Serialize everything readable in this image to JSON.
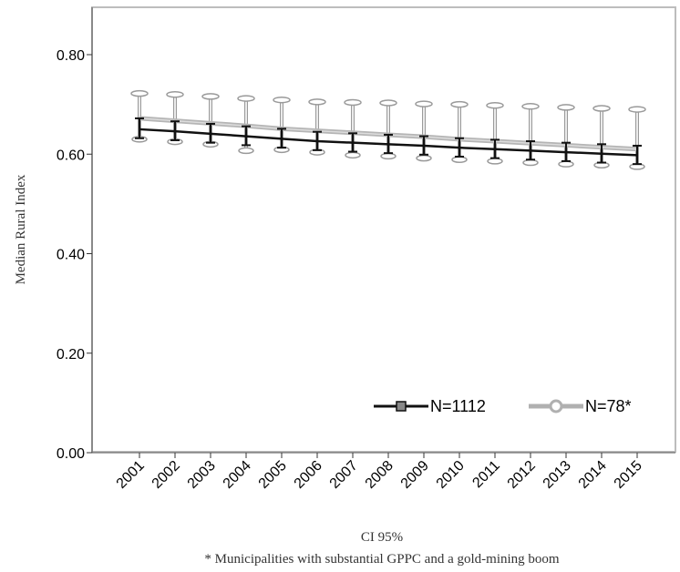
{
  "chart_data": {
    "type": "line",
    "title": "",
    "xlabel": "CI 95%",
    "ylabel": "Median Rural Index",
    "footnote": "* Municipalities with substantial GPPC and a gold-mining boom",
    "categories": [
      "2001",
      "2002",
      "2003",
      "2004",
      "2005",
      "2006",
      "2007",
      "2008",
      "2009",
      "2010",
      "2011",
      "2012",
      "2013",
      "2014",
      "2015"
    ],
    "ylim": [
      0,
      0.85
    ],
    "yticks": [
      "0.00",
      "0.20",
      "0.40",
      "0.60",
      "0.80"
    ],
    "ytick_values": [
      0,
      0.2,
      0.4,
      0.6,
      0.8
    ],
    "grid": false,
    "legend_position": "bottom-right",
    "series": [
      {
        "name": "N=1112",
        "color": "#111111",
        "marker": "square",
        "values": [
          0.65,
          0.646,
          0.641,
          0.636,
          0.631,
          0.626,
          0.623,
          0.62,
          0.617,
          0.613,
          0.61,
          0.607,
          0.604,
          0.601,
          0.598
        ],
        "ci_low": [
          0.632,
          0.628,
          0.623,
          0.618,
          0.613,
          0.608,
          0.605,
          0.602,
          0.599,
          0.595,
          0.592,
          0.589,
          0.586,
          0.583,
          0.58
        ],
        "ci_high": [
          0.672,
          0.666,
          0.661,
          0.656,
          0.651,
          0.645,
          0.642,
          0.639,
          0.636,
          0.632,
          0.629,
          0.626,
          0.623,
          0.62,
          0.617
        ]
      },
      {
        "name": "N=78*",
        "color": "#aaaaaa",
        "marker": "circle",
        "values": [
          0.672,
          0.667,
          0.662,
          0.657,
          0.651,
          0.647,
          0.643,
          0.639,
          0.635,
          0.63,
          0.626,
          0.622,
          0.618,
          0.614,
          0.61
        ],
        "ci_low": [
          0.63,
          0.625,
          0.62,
          0.607,
          0.609,
          0.604,
          0.598,
          0.596,
          0.592,
          0.589,
          0.586,
          0.583,
          0.58,
          0.578,
          0.575
        ],
        "ci_high": [
          0.722,
          0.72,
          0.716,
          0.712,
          0.709,
          0.705,
          0.704,
          0.703,
          0.701,
          0.7,
          0.698,
          0.696,
          0.694,
          0.692,
          0.69
        ]
      }
    ]
  }
}
